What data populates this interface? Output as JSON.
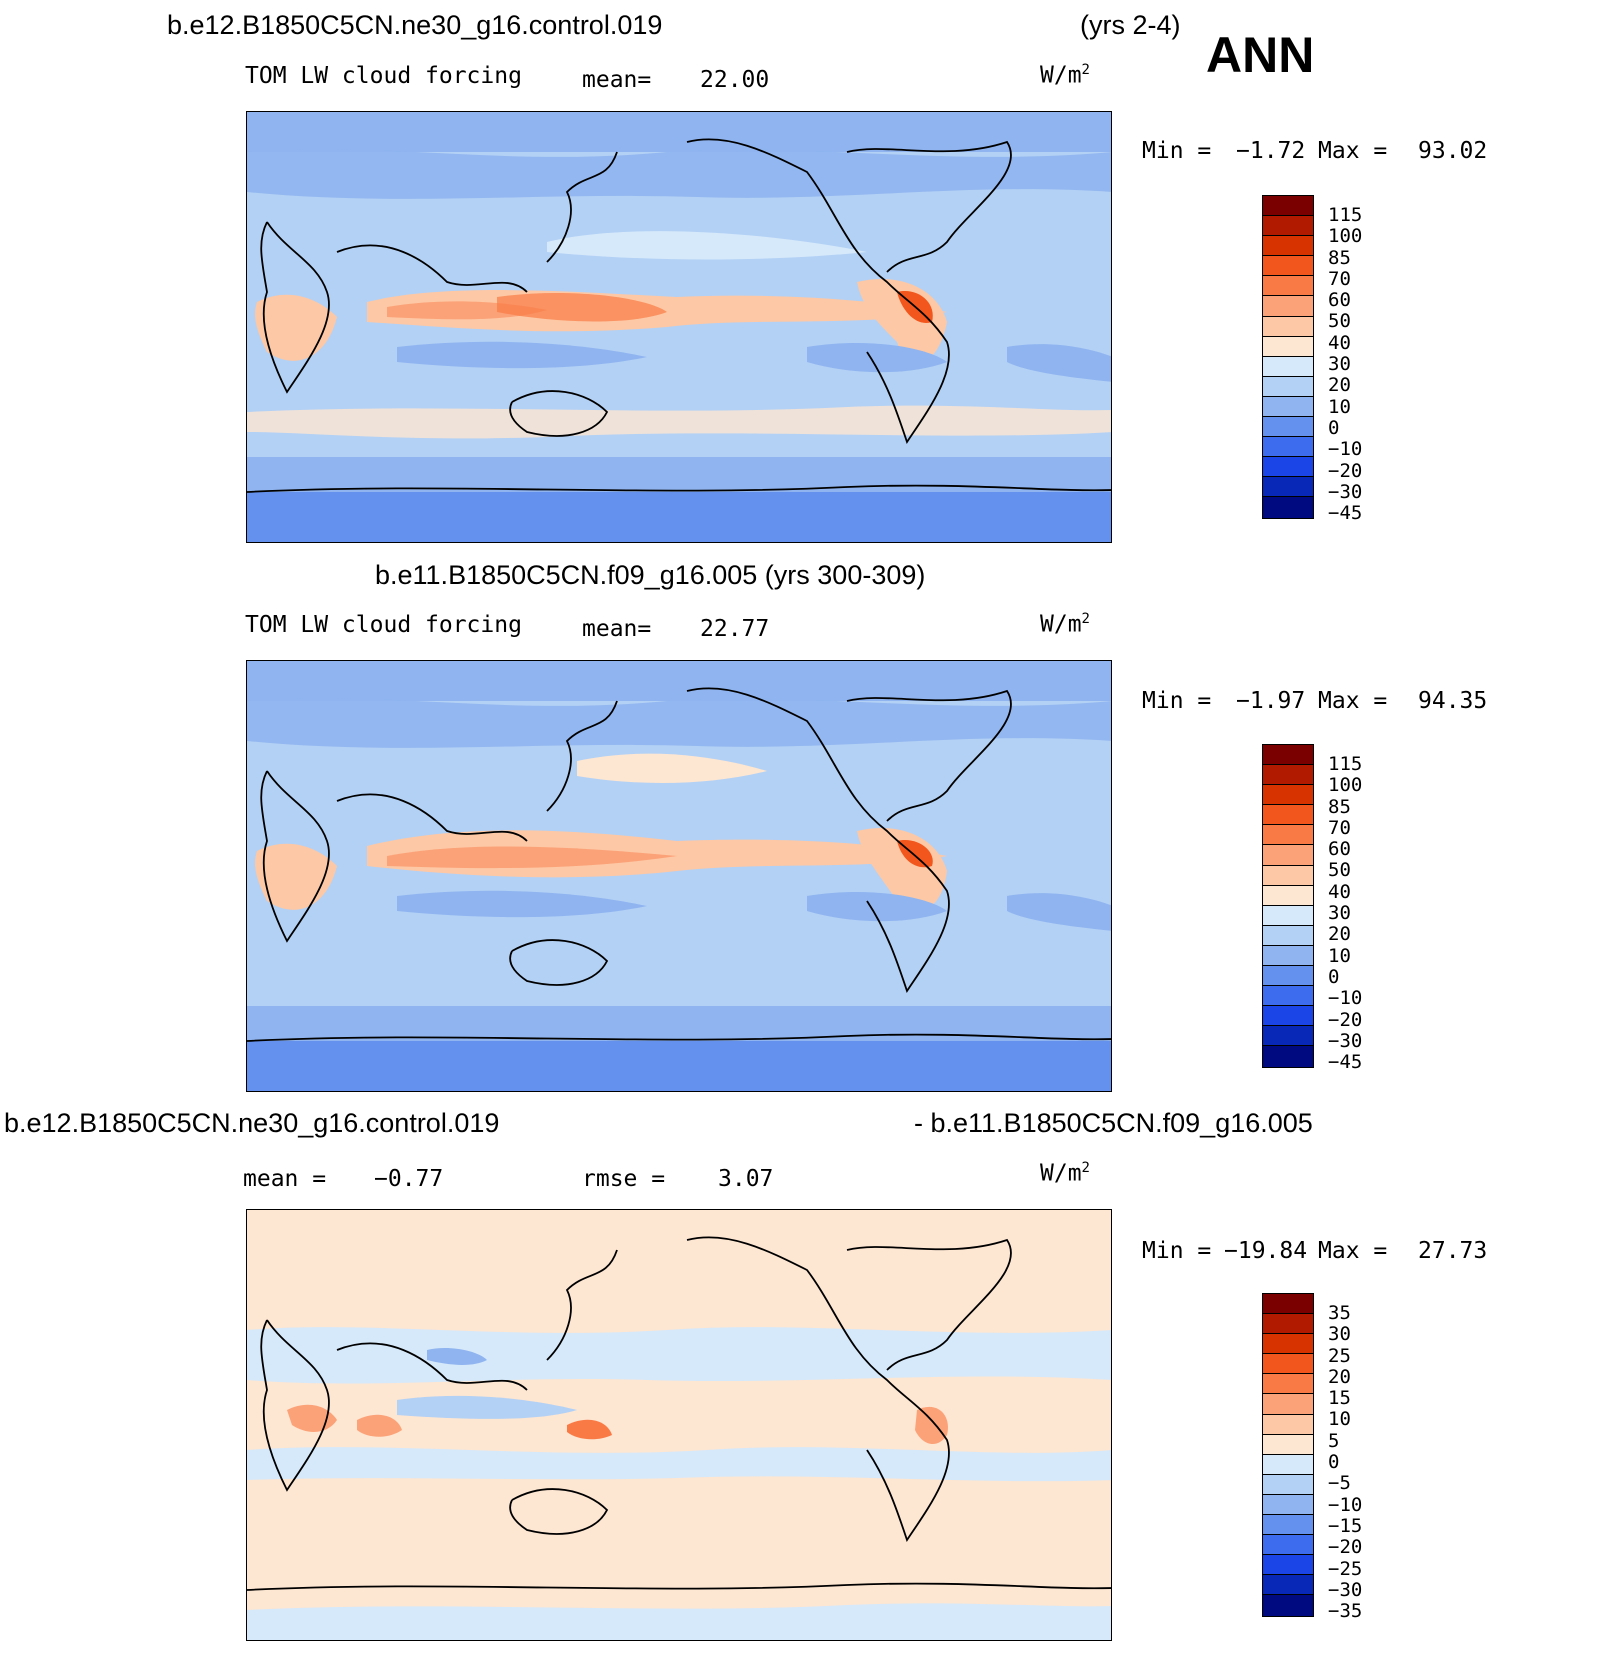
{
  "header": {
    "case_top": "b.e12.B1850C5CN.ne30_g16.control.019",
    "years_top": "(yrs 2-4)",
    "season": "ANN",
    "case_mid": "b.e11.B1850C5CN.f09_g16.005 (yrs 300-309)",
    "diff_left": "b.e12.B1850C5CN.ne30_g16.control.019",
    "diff_right": "- b.e11.B1850C5CN.f09_g16.005"
  },
  "panels": [
    {
      "id": "top",
      "field": "TOM LW cloud forcing",
      "stat_label": "mean=",
      "stat_value": "22.00",
      "units": "W/m",
      "units_sup": "2",
      "min_label": "Min =",
      "min_value": "−1.72",
      "max_label": "Max =",
      "max_value": "93.02"
    },
    {
      "id": "middle",
      "field": "TOM LW cloud forcing",
      "stat_label": "mean=",
      "stat_value": "22.77",
      "units": "W/m",
      "units_sup": "2",
      "min_label": "Min =",
      "min_value": "−1.97",
      "max_label": "Max =",
      "max_value": "94.35"
    },
    {
      "id": "bottom",
      "stat_label": "mean =",
      "stat_value": "−0.77",
      "rmse_label": "rmse =",
      "rmse_value": "3.07",
      "units": "W/m",
      "units_sup": "2",
      "min_label": "Min =",
      "min_value": "−19.84",
      "max_label": "Max =",
      "max_value": "27.73"
    }
  ],
  "colorbars": {
    "field": {
      "ticks": [
        "115",
        "100",
        "85",
        "70",
        "60",
        "50",
        "40",
        "30",
        "20",
        "10",
        "0",
        "−10",
        "−20",
        "−30",
        "−45"
      ],
      "colors": [
        "#7a0000",
        "#b21a00",
        "#d63300",
        "#f2561c",
        "#fa7a45",
        "#fca278",
        "#fdc8a5",
        "#fde6d2",
        "#d6e9fa",
        "#b3d1f5",
        "#8fb4f0",
        "#6591ee",
        "#3d6cef",
        "#1b45e6",
        "#0828b8",
        "#000a80"
      ]
    },
    "diff": {
      "ticks": [
        "35",
        "30",
        "25",
        "20",
        "15",
        "10",
        "5",
        "0",
        "−5",
        "−10",
        "−15",
        "−20",
        "−25",
        "−30",
        "−35"
      ],
      "colors": [
        "#7a0000",
        "#b21a00",
        "#d63300",
        "#f2561c",
        "#fa7a45",
        "#fca278",
        "#fdc8a5",
        "#fde6d2",
        "#d6e9fa",
        "#b3d1f5",
        "#8fb4f0",
        "#6591ee",
        "#3d6cef",
        "#1b45e6",
        "#0828b8",
        "#000a80"
      ]
    }
  }
}
